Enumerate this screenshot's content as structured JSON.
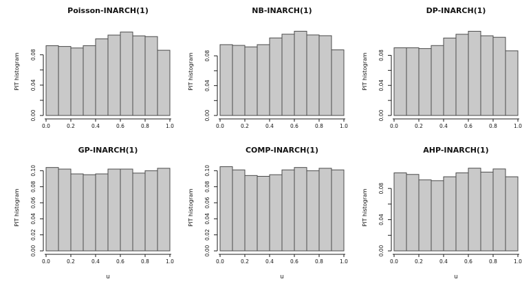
{
  "figure": {
    "background": "#ffffff",
    "bar_fill": "#c9c9c9",
    "bar_stroke": "#4a4a4a",
    "axis_color": "#1a1a1a",
    "text_color": "#111111",
    "ylabel": "PIT histogram",
    "xlabel_bottom_row": "u",
    "bin_edges": [
      0.0,
      0.1,
      0.2,
      0.3,
      0.4,
      0.5,
      0.6,
      0.7,
      0.8,
      0.9,
      1.0
    ],
    "xticks": [
      {
        "v": 0.0,
        "label": "0.0"
      },
      {
        "v": 0.2,
        "label": "0.2"
      },
      {
        "v": 0.4,
        "label": "0.4"
      },
      {
        "v": 0.6,
        "label": "0.6"
      },
      {
        "v": 0.8,
        "label": "0.8"
      },
      {
        "v": 1.0,
        "label": "1.0"
      }
    ]
  },
  "chart_data": [
    {
      "type": "bar",
      "title": "Poisson-INARCH(1)",
      "xlabel": "",
      "ylabel": "PIT histogram",
      "categories": [
        "0.0-0.1",
        "0.1-0.2",
        "0.2-0.3",
        "0.3-0.4",
        "0.4-0.5",
        "0.5-0.6",
        "0.6-0.7",
        "0.7-0.8",
        "0.8-0.9",
        "0.9-1.0"
      ],
      "values": [
        0.092,
        0.091,
        0.089,
        0.092,
        0.101,
        0.106,
        0.11,
        0.105,
        0.104,
        0.086
      ],
      "xlim": [
        0.0,
        1.0
      ],
      "ylim": [
        0,
        0.116
      ],
      "yticks": [
        {
          "v": 0.0,
          "label": "0.00"
        },
        {
          "v": 0.02,
          "label": ""
        },
        {
          "v": 0.04,
          "label": "0.04"
        },
        {
          "v": 0.06,
          "label": ""
        },
        {
          "v": 0.08,
          "label": "0.08"
        }
      ]
    },
    {
      "type": "bar",
      "title": "NB-INARCH(1)",
      "xlabel": "",
      "ylabel": "PIT histogram",
      "categories": [
        "0.0-0.1",
        "0.1-0.2",
        "0.2-0.3",
        "0.3-0.4",
        "0.4-0.5",
        "0.5-0.6",
        "0.6-0.7",
        "0.7-0.8",
        "0.8-0.9",
        "0.9-1.0"
      ],
      "values": [
        0.095,
        0.094,
        0.092,
        0.095,
        0.104,
        0.109,
        0.113,
        0.108,
        0.107,
        0.088
      ],
      "xlim": [
        0.0,
        1.0
      ],
      "ylim": [
        0,
        0.118
      ],
      "yticks": [
        {
          "v": 0.0,
          "label": "0.00"
        },
        {
          "v": 0.02,
          "label": ""
        },
        {
          "v": 0.04,
          "label": "0.04"
        },
        {
          "v": 0.06,
          "label": ""
        },
        {
          "v": 0.08,
          "label": "0.08"
        }
      ]
    },
    {
      "type": "bar",
      "title": "DP-INARCH(1)",
      "xlabel": "",
      "ylabel": "PIT histogram",
      "categories": [
        "0.0-0.1",
        "0.1-0.2",
        "0.2-0.3",
        "0.3-0.4",
        "0.4-0.5",
        "0.5-0.6",
        "0.6-0.7",
        "0.7-0.8",
        "0.8-0.9",
        "0.9-1.0"
      ],
      "values": [
        0.09,
        0.09,
        0.089,
        0.093,
        0.103,
        0.108,
        0.112,
        0.106,
        0.104,
        0.086
      ],
      "xlim": [
        0.0,
        1.0
      ],
      "ylim": [
        0,
        0.117
      ],
      "yticks": [
        {
          "v": 0.0,
          "label": "0.00"
        },
        {
          "v": 0.02,
          "label": ""
        },
        {
          "v": 0.04,
          "label": "0.04"
        },
        {
          "v": 0.06,
          "label": ""
        },
        {
          "v": 0.08,
          "label": "0.08"
        }
      ]
    },
    {
      "type": "bar",
      "title": "GP-INARCH(1)",
      "xlabel": "u",
      "ylabel": "PIT histogram",
      "categories": [
        "0.0-0.1",
        "0.1-0.2",
        "0.2-0.3",
        "0.3-0.4",
        "0.4-0.5",
        "0.5-0.6",
        "0.6-0.7",
        "0.7-0.8",
        "0.8-0.9",
        "0.9-1.0"
      ],
      "values": [
        0.104,
        0.102,
        0.096,
        0.095,
        0.096,
        0.102,
        0.102,
        0.097,
        0.1,
        0.103
      ],
      "xlim": [
        0.0,
        1.0
      ],
      "ylim": [
        0,
        0.108
      ],
      "yticks": [
        {
          "v": 0.0,
          "label": "0.00"
        },
        {
          "v": 0.02,
          "label": "0.02"
        },
        {
          "v": 0.04,
          "label": "0.04"
        },
        {
          "v": 0.06,
          "label": "0.06"
        },
        {
          "v": 0.08,
          "label": "0.08"
        },
        {
          "v": 0.1,
          "label": "0.10"
        }
      ]
    },
    {
      "type": "bar",
      "title": "COMP-INARCH(1)",
      "xlabel": "u",
      "ylabel": "PIT histogram",
      "categories": [
        "0.0-0.1",
        "0.1-0.2",
        "0.2-0.3",
        "0.3-0.4",
        "0.4-0.5",
        "0.5-0.6",
        "0.6-0.7",
        "0.7-0.8",
        "0.8-0.9",
        "0.9-1.0"
      ],
      "values": [
        0.105,
        0.101,
        0.094,
        0.093,
        0.095,
        0.101,
        0.104,
        0.1,
        0.103,
        0.101
      ],
      "xlim": [
        0.0,
        1.0
      ],
      "ylim": [
        0,
        0.108
      ],
      "yticks": [
        {
          "v": 0.0,
          "label": "0.00"
        },
        {
          "v": 0.02,
          "label": "0.02"
        },
        {
          "v": 0.04,
          "label": "0.04"
        },
        {
          "v": 0.06,
          "label": "0.06"
        },
        {
          "v": 0.08,
          "label": "0.08"
        },
        {
          "v": 0.1,
          "label": "0.10"
        }
      ]
    },
    {
      "type": "bar",
      "title": "AHP-INARCH(1)",
      "xlabel": "u",
      "ylabel": "PIT histogram",
      "categories": [
        "0.0-0.1",
        "0.1-0.2",
        "0.2-0.3",
        "0.3-0.4",
        "0.4-0.5",
        "0.5-0.6",
        "0.6-0.7",
        "0.7-0.8",
        "0.8-0.9",
        "0.9-1.0"
      ],
      "values": [
        0.1,
        0.098,
        0.091,
        0.09,
        0.095,
        0.1,
        0.106,
        0.101,
        0.105,
        0.095
      ],
      "xlim": [
        0.0,
        1.0
      ],
      "ylim": [
        0,
        0.111
      ],
      "yticks": [
        {
          "v": 0.0,
          "label": "0.00"
        },
        {
          "v": 0.02,
          "label": ""
        },
        {
          "v": 0.04,
          "label": "0.04"
        },
        {
          "v": 0.06,
          "label": ""
        },
        {
          "v": 0.08,
          "label": "0.08"
        }
      ]
    }
  ]
}
